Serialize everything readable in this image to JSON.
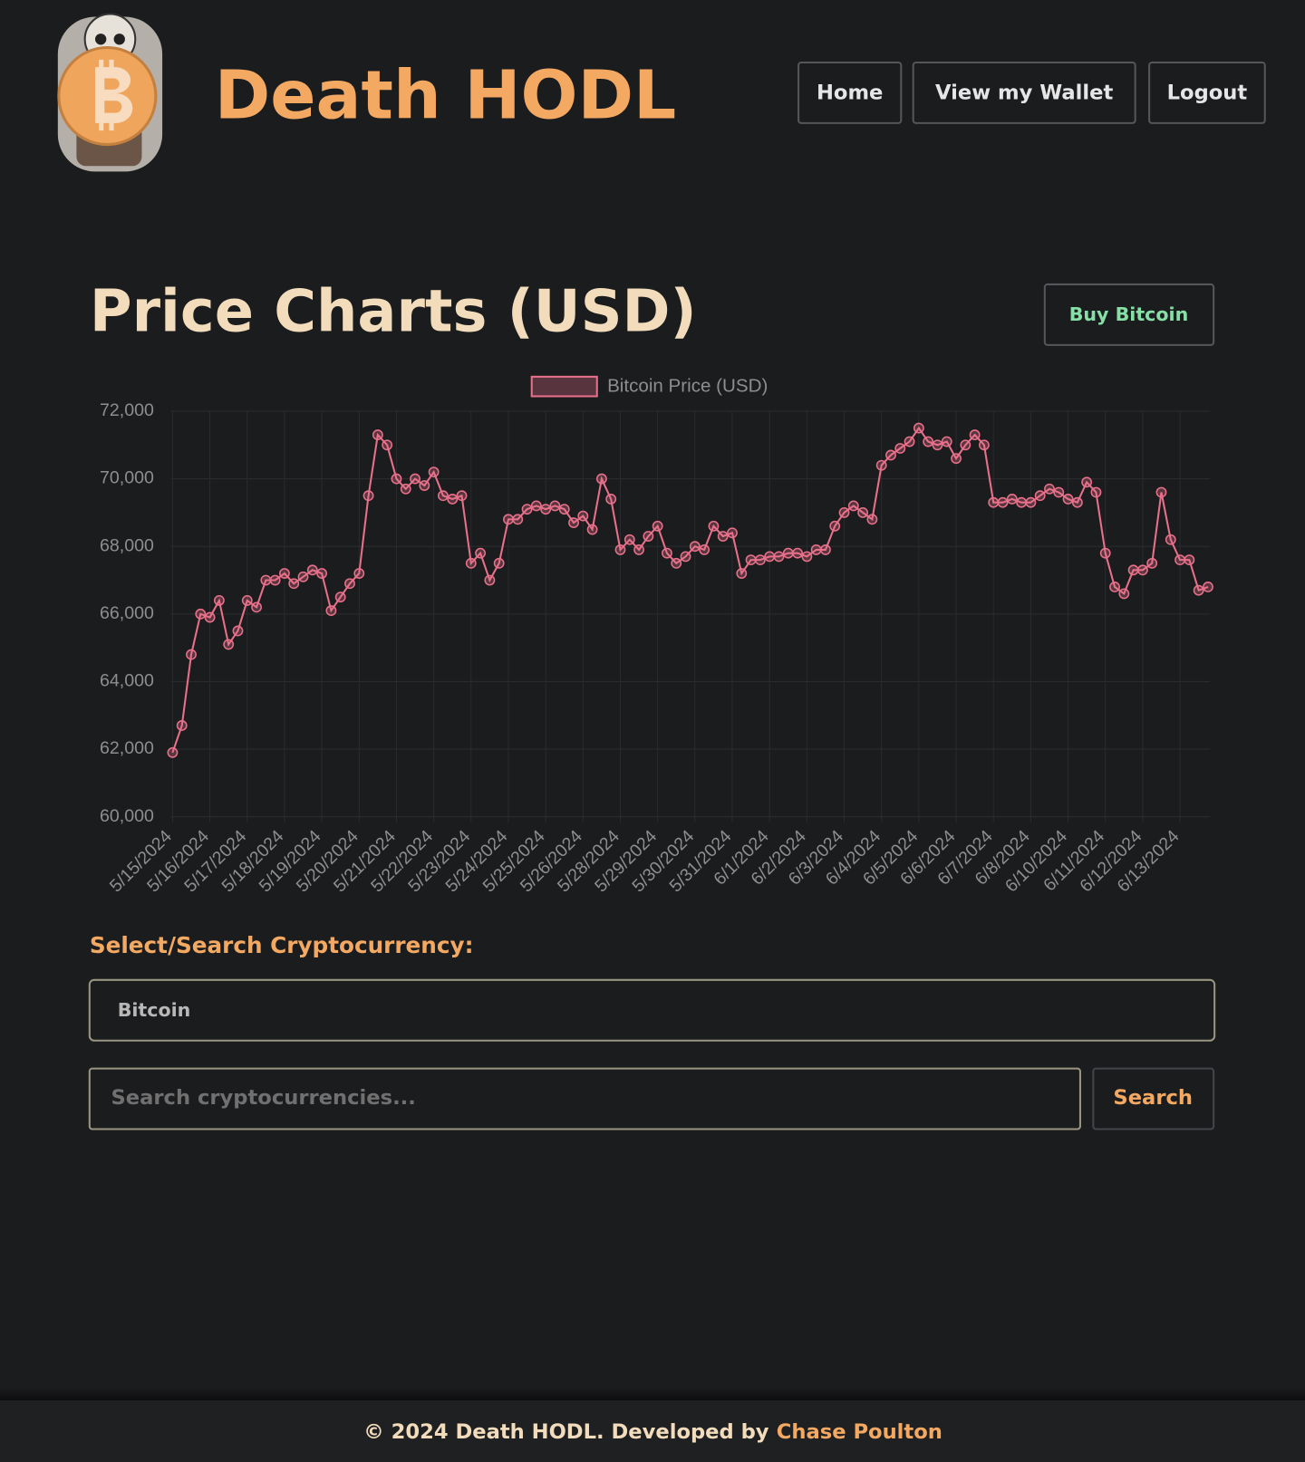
{
  "header": {
    "title": "Death HODL",
    "nav": [
      "Home",
      "View my Wallet",
      "Logout"
    ]
  },
  "heading": "Price Charts (USD)",
  "buy_button": "Buy Bitcoin",
  "chart_data": {
    "type": "line",
    "categories": [
      "5/15/2024",
      null,
      null,
      null,
      "5/16/2024",
      null,
      null,
      null,
      "5/17/2024",
      null,
      null,
      null,
      "5/18/2024",
      null,
      null,
      null,
      "5/19/2024",
      null,
      null,
      null,
      "5/20/2024",
      null,
      null,
      null,
      "5/21/2024",
      null,
      null,
      null,
      "5/22/2024",
      null,
      null,
      null,
      "5/23/2024",
      null,
      null,
      null,
      "5/24/2024",
      null,
      null,
      null,
      "5/25/2024",
      null,
      null,
      null,
      "5/26/2024",
      null,
      null,
      null,
      "5/28/2024",
      null,
      null,
      null,
      "5/29/2024",
      null,
      null,
      null,
      "5/30/2024",
      null,
      null,
      null,
      "5/31/2024",
      null,
      null,
      null,
      "6/1/2024",
      null,
      null,
      null,
      "6/2/2024",
      null,
      null,
      null,
      "6/3/2024",
      null,
      null,
      null,
      "6/4/2024",
      null,
      null,
      null,
      "6/5/2024",
      null,
      null,
      null,
      "6/6/2024",
      null,
      null,
      null,
      "6/7/2024",
      null,
      null,
      null,
      "6/8/2024",
      null,
      null,
      null,
      "6/10/2024",
      null,
      null,
      null,
      "6/11/2024",
      null,
      null,
      null,
      "6/12/2024",
      null,
      null,
      null,
      "6/13/2024",
      null,
      null,
      null
    ],
    "series": [
      {
        "name": "Bitcoin Price (USD)",
        "color": "#e8708a",
        "values": [
          61900,
          62700,
          64800,
          66000,
          65900,
          66400,
          65100,
          65500,
          66400,
          66200,
          67000,
          67000,
          67200,
          66900,
          67100,
          67300,
          67200,
          66100,
          66500,
          66900,
          67200,
          69500,
          71300,
          71000,
          70000,
          69700,
          70000,
          69800,
          70200,
          69500,
          69400,
          69500,
          67500,
          67800,
          67000,
          67500,
          68800,
          68800,
          69100,
          69200,
          69100,
          69200,
          69100,
          68700,
          68900,
          68500,
          70000,
          69400,
          67900,
          68200,
          67900,
          68300,
          68600,
          67800,
          67500,
          67700,
          68000,
          67900,
          68600,
          68300,
          68400,
          67200,
          67600,
          67600,
          67700,
          67700,
          67800,
          67800,
          67700,
          67900,
          67900,
          68600,
          69000,
          69200,
          69000,
          68800,
          70400,
          70700,
          70900,
          71100,
          71500,
          71100,
          71000,
          71100,
          70600,
          71000,
          71300,
          71000,
          69300,
          69300,
          69400,
          69300,
          69300,
          69500,
          69700,
          69600,
          69400,
          69300,
          69900,
          69600,
          67800,
          66800,
          66600,
          67300,
          67300,
          67500,
          69600,
          68200,
          67600,
          67600,
          66700,
          66800
        ]
      }
    ],
    "ylim": [
      60000,
      72000
    ],
    "yticks": [
      {
        "value": 60000,
        "label": "60,000"
      },
      {
        "value": 62000,
        "label": "62,000"
      },
      {
        "value": 64000,
        "label": "64,000"
      },
      {
        "value": 66000,
        "label": "66,000"
      },
      {
        "value": 68000,
        "label": "68,000"
      },
      {
        "value": 70000,
        "label": "70,000"
      },
      {
        "value": 72000,
        "label": "72,000"
      }
    ],
    "grid": true,
    "legend": "top"
  },
  "form": {
    "label": "Select/Search Cryptocurrency:",
    "select_value": "Bitcoin",
    "search_placeholder": "Search cryptocurrencies...",
    "search_button": "Search"
  },
  "footer": {
    "text": "© 2024 Death HODL. Developed by",
    "author": "Chase Poulton"
  }
}
